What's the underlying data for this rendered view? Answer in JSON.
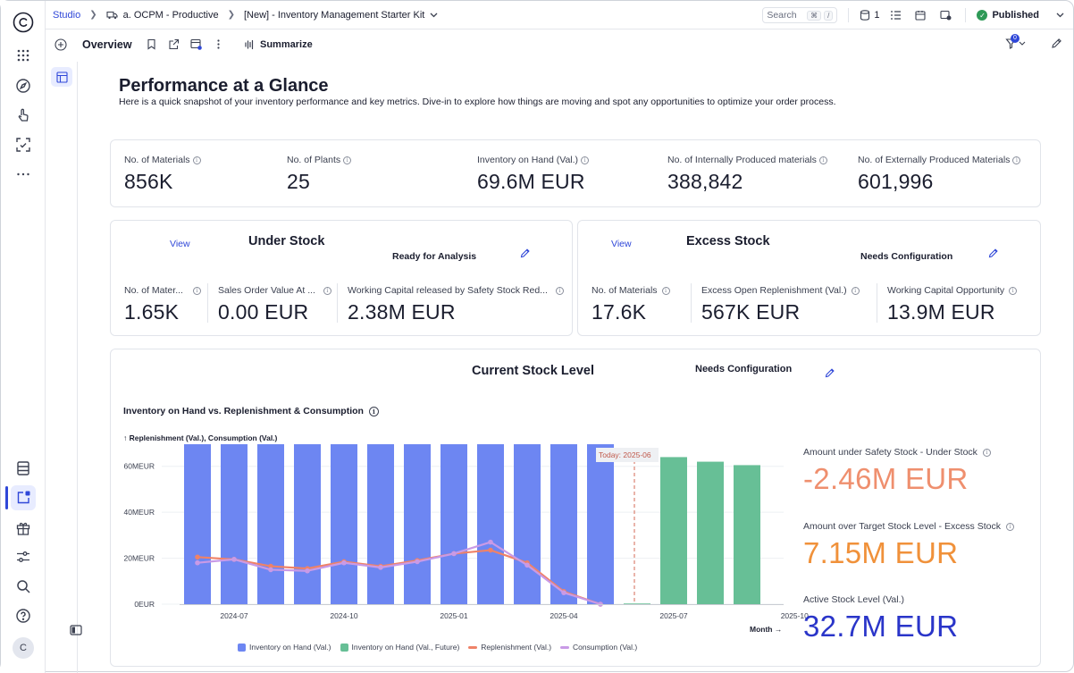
{
  "breadcrumb": {
    "studio": "Studio",
    "space": "a. OCPM - Productive",
    "package": "[New] - Inventory Management Starter Kit"
  },
  "topbar": {
    "search_label": "Search",
    "search_kbd_1": "⌘",
    "search_kbd_2": "/",
    "data_count": "1",
    "published_label": "Published"
  },
  "subbar": {
    "title": "Overview",
    "summarize_label": "Summarize",
    "filter_badge": "0"
  },
  "user": {
    "avatar_initial": "C"
  },
  "page": {
    "title": "Performance at a Glance",
    "subtitle": "Here is a quick snapshot of your inventory performance and key metrics. Dive-in to explore how things are moving and spot any opportunities to optimize your order process."
  },
  "kpis": [
    {
      "label": "No. of Materials",
      "value": "856K"
    },
    {
      "label": "No. of Plants",
      "value": "25"
    },
    {
      "label": "Inventory on Hand (Val.)",
      "value": "69.6M EUR"
    },
    {
      "label": "No. of Internally Produced materials",
      "value": "388,842"
    },
    {
      "label": "No. of Externally Produced Materials",
      "value": "601,996"
    }
  ],
  "under_stock": {
    "view_label": "View",
    "title": "Under Stock",
    "status": "Ready for Analysis",
    "kpis": [
      {
        "label": "No. of Mater...",
        "value": "1.65K"
      },
      {
        "label": "Sales Order Value At ...",
        "value": "0.00 EUR"
      },
      {
        "label": "Working Capital released by Safety Stock Red...",
        "value": "2.38M EUR"
      }
    ]
  },
  "excess_stock": {
    "view_label": "View",
    "title": "Excess Stock",
    "status": "Needs Configuration",
    "kpis": [
      {
        "label": "No. of Materials",
        "value": "17.6K"
      },
      {
        "label": "Excess Open Replenishment (Val.)",
        "value": "567K EUR"
      },
      {
        "label": "Working Capital Opportunity",
        "value": "13.9M EUR"
      }
    ]
  },
  "current_stock": {
    "title": "Current Stock Level",
    "status": "Needs Configuration",
    "chart_title": "Inventory on Hand vs. Replenishment & Consumption",
    "y_axis_label": "↑ Replenishment (Val.), Consumption (Val.)",
    "x_axis_label": "Month →",
    "today_label": "Today: 2025-06",
    "side_kpis": [
      {
        "label": "Amount under Safety Stock - Under Stock",
        "value": "-2.46M EUR",
        "color": "#ef8f6e"
      },
      {
        "label": "Amount over Target Stock Level - Excess Stock",
        "value": "7.15M EUR",
        "color": "#f0913a"
      },
      {
        "label": "Active Stock Level (Val.)",
        "value": "32.7M EUR",
        "color": "#2a35c9"
      }
    ]
  },
  "colors": {
    "accent": "#2f47d8",
    "inventory": "#6d86f2",
    "inventory_future": "#67bf96",
    "replenishment": "#ef8268",
    "consumption": "#c99ae6"
  },
  "chart_data": {
    "type": "bar",
    "title": "Inventory on Hand vs. Replenishment & Consumption",
    "ylabel": "Replenishment (Val.), Consumption (Val.)",
    "xlabel": "Month",
    "x": [
      "2024-06",
      "2024-07",
      "2024-08",
      "2024-09",
      "2024-10",
      "2024-11",
      "2024-12",
      "2025-01",
      "2025-02",
      "2025-03",
      "2025-04",
      "2025-05",
      "2025-06",
      "2025-07",
      "2025-08",
      "2025-09"
    ],
    "x_ticks": [
      "2024-07",
      "2024-10",
      "2025-01",
      "2025-04",
      "2025-07",
      "2025-10"
    ],
    "y_ticks": [
      "0EUR",
      "20MEUR",
      "40MEUR",
      "60MEUR"
    ],
    "ylim": [
      0,
      70
    ],
    "today": "2025-06",
    "series": [
      {
        "name": "Inventory on Hand (Val.)",
        "kind": "bar",
        "values": [
          69.6,
          69.6,
          69.6,
          69.6,
          69.6,
          69.6,
          69.6,
          69.6,
          69.6,
          69.6,
          69.6,
          69.6,
          null,
          null,
          null,
          null
        ]
      },
      {
        "name": "Inventory on Hand (Val., Future)",
        "kind": "bar",
        "values": [
          null,
          null,
          null,
          null,
          null,
          null,
          null,
          null,
          null,
          null,
          null,
          null,
          0.3,
          64,
          62,
          60.5
        ]
      },
      {
        "name": "Replenishment (Val.)",
        "kind": "line",
        "values": [
          20.5,
          19.5,
          16.5,
          15.5,
          18.5,
          16.5,
          19,
          22,
          23.5,
          18,
          5.5,
          0,
          null,
          null,
          null,
          null
        ]
      },
      {
        "name": "Consumption (Val.)",
        "kind": "line",
        "values": [
          18,
          19.5,
          15,
          14.5,
          18,
          16,
          18.5,
          22,
          27,
          17,
          5,
          0,
          null,
          null,
          null,
          null
        ]
      }
    ],
    "legend": "bottom"
  }
}
